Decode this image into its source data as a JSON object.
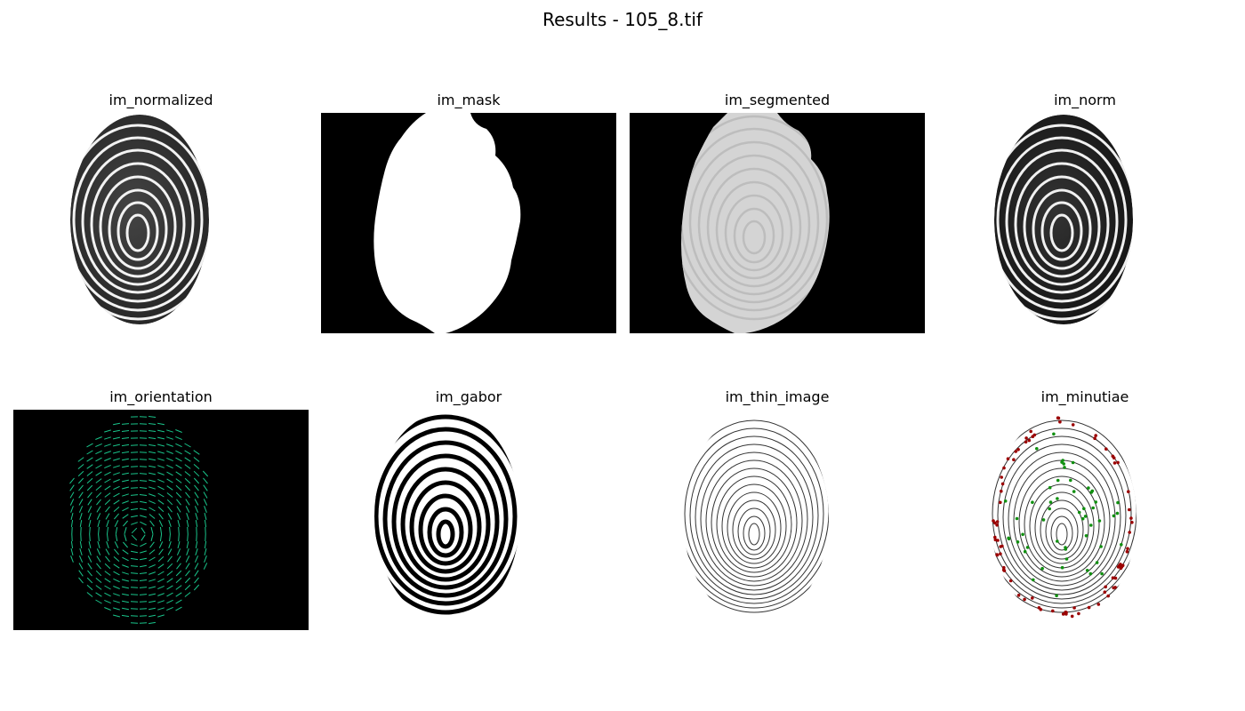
{
  "figure": {
    "title": "Results - 105_8.tif"
  },
  "panels": [
    {
      "title": "im_normalized"
    },
    {
      "title": "im_mask"
    },
    {
      "title": "im_segmented"
    },
    {
      "title": "im_norm"
    },
    {
      "title": "im_orientation"
    },
    {
      "title": "im_gabor"
    },
    {
      "title": "im_thin_image"
    },
    {
      "title": "im_minutiae"
    }
  ],
  "colors": {
    "orientation_line": "#19c48a",
    "minutia_termination": "#9b0000",
    "minutia_bifurcation": "#109010",
    "panel_background_dark": "#000000"
  }
}
